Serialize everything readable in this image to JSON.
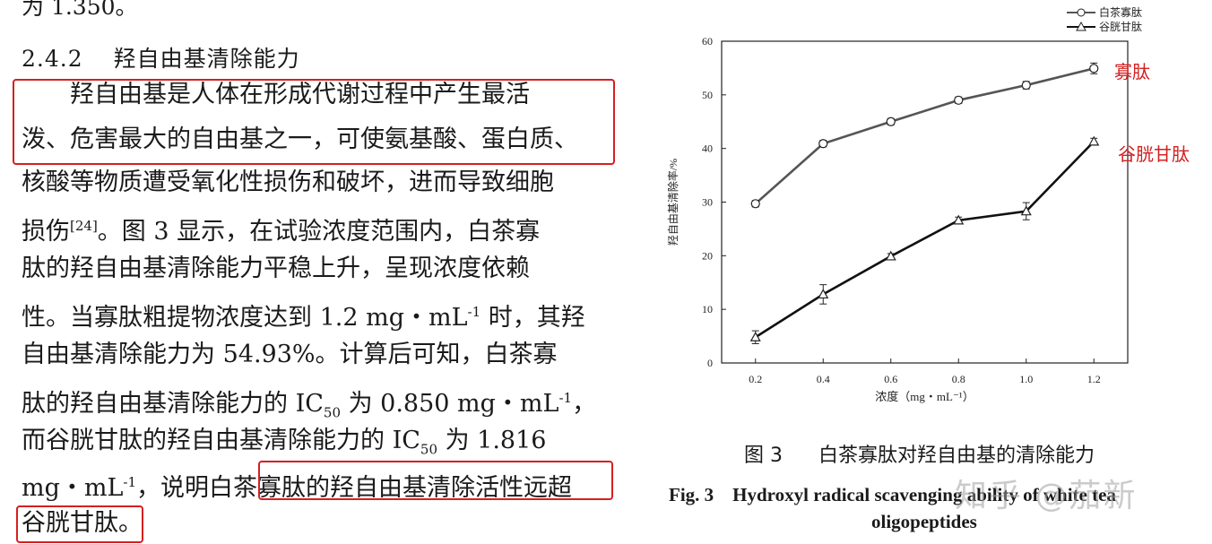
{
  "text": {
    "top_fragment": "为 1.350。",
    "section_number": "2.4.2",
    "section_title": "羟自由基清除能力",
    "l1": "　　羟自由基是人体在形成代谢过程中产生最活",
    "l2": "泼、危害最大的自由基之一，可使氨基酸、蛋白质、",
    "l3": "核酸等物质遭受氧化性损伤和破坏，进而导致细胞",
    "l4a": "损伤",
    "l4ref": "[24]",
    "l4b": "。图 3 显示，在试验浓度范围内，白茶寡",
    "l5": "肽的羟自由基清除能力平稳上升，呈现浓度依赖",
    "l6a": "性。当寡肽粗提物浓度达到 1.2 mg・mL",
    "l6sup": "-1",
    "l6b": " 时，其羟",
    "l7": "自由基清除能力为 54.93%。计算后可知，白茶寡",
    "l8a": "肽的羟自由基清除能力的 IC",
    "l8sub": "50",
    "l8b": " 为 0.850 mg・mL",
    "l8sup": "-1",
    "l8c": "，",
    "l9a": "而谷胱甘肽的羟自由基清除能力的 IC",
    "l9sub": "50",
    "l9b": " 为 1.816",
    "l10a": "mg・mL",
    "l10sup": "-1",
    "l10b": "，说明白茶寡肽的羟自由基清除活性远超",
    "l11": "谷胱甘肽。"
  },
  "figure": {
    "caption_number": "图 3",
    "caption_cn": "白茶寡肽对羟自由基的清除能力",
    "caption_en_line1": "Fig. 3　Hydroxyl radical scavenging ability of white tea",
    "caption_en_line2": "oligopeptides",
    "annot_oligo": "寡肽",
    "annot_gsh": "谷胱甘肽",
    "watermark": "知乎 @茄新",
    "accent_red": "#d42020"
  },
  "chart_data": {
    "type": "line",
    "xlabel": "浓度（mg・mL⁻¹）",
    "ylabel": "羟自由基清除率/%",
    "x": [
      0.2,
      0.4,
      0.6,
      0.8,
      1.0,
      1.2
    ],
    "xticks": [
      "0.2",
      "0.4",
      "0.6",
      "0.8",
      "1.0",
      "1.2"
    ],
    "yticks": [
      "0",
      "10",
      "20",
      "30",
      "40",
      "50",
      "60"
    ],
    "ylim": [
      0,
      60
    ],
    "xlim": [
      0.1,
      1.3
    ],
    "legend_position": "top-right",
    "series": [
      {
        "name": "白茶寡肽",
        "marker": "circle",
        "color": "#555555",
        "values": [
          29.7,
          40.9,
          45.0,
          49.0,
          51.8,
          54.93
        ],
        "err": [
          0.6,
          0.6,
          0.6,
          0.6,
          0.7,
          1.0
        ]
      },
      {
        "name": "谷胱甘肽",
        "marker": "triangle",
        "color": "#111111",
        "values": [
          4.8,
          12.8,
          19.9,
          26.6,
          28.3,
          41.3
        ],
        "err": [
          1.2,
          1.8,
          0.5,
          0.6,
          1.6,
          0.6
        ]
      }
    ]
  }
}
